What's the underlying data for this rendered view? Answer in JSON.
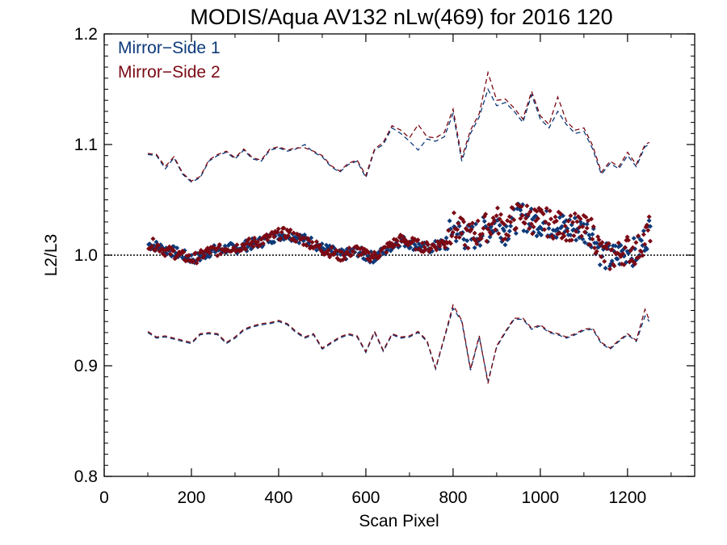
{
  "chart_data": {
    "type": "scatter",
    "title": "MODIS/Aqua AV132 nLw(469) for 2016 120",
    "xlabel": "Scan Pixel",
    "ylabel": "L2/L3",
    "xlim": [
      0,
      1354
    ],
    "ylim": [
      0.8,
      1.2
    ],
    "x_ticks": [
      0,
      200,
      400,
      600,
      800,
      1000,
      1200
    ],
    "x_tick_labels": [
      "0",
      "200",
      "400",
      "600",
      "800",
      "1000",
      "1200"
    ],
    "y_ticks": [
      0.8,
      0.9,
      1.0,
      1.1,
      1.2
    ],
    "y_tick_labels": [
      "0.8",
      "0.9",
      "1.0",
      "1.1",
      "1.2"
    ],
    "reference_line": 1.0,
    "legend_placement": "top-left",
    "legend": [
      {
        "label": "Mirror−Side 1",
        "color": "#0d3a7a"
      },
      {
        "label": "Mirror−Side 2",
        "color": "#7a0a14"
      }
    ],
    "x": [
      100,
      120,
      140,
      160,
      180,
      200,
      220,
      240,
      260,
      280,
      300,
      320,
      340,
      360,
      380,
      400,
      420,
      440,
      460,
      480,
      500,
      520,
      540,
      560,
      580,
      600,
      620,
      640,
      660,
      680,
      700,
      720,
      740,
      760,
      780,
      800,
      820,
      840,
      860,
      880,
      900,
      920,
      940,
      960,
      980,
      1000,
      1020,
      1040,
      1060,
      1080,
      1100,
      1120,
      1140,
      1160,
      1180,
      1200,
      1220,
      1240,
      1250
    ],
    "series": [
      {
        "name": "Mirror−Side 1",
        "color": "#0d3a7a",
        "mean": [
          1.01,
          1.008,
          1.005,
          1.003,
          1.0,
          0.997,
          0.998,
          1.003,
          1.005,
          1.006,
          1.006,
          1.008,
          1.01,
          1.012,
          1.015,
          1.018,
          1.019,
          1.017,
          1.014,
          1.011,
          1.006,
          1.004,
          1.0,
          1.001,
          1.004,
          0.999,
          0.998,
          1.003,
          1.009,
          1.013,
          1.011,
          1.008,
          1.006,
          1.008,
          1.01,
          1.025,
          1.018,
          1.015,
          1.02,
          1.024,
          1.03,
          1.022,
          1.032,
          1.035,
          1.03,
          1.03,
          1.028,
          1.026,
          1.025,
          1.024,
          1.022,
          1.02,
          1.001,
          0.997,
          1.0,
          1.005,
          1.002,
          1.015,
          1.022
        ],
        "upper": [
          1.091,
          1.09,
          1.078,
          1.088,
          1.073,
          1.066,
          1.07,
          1.085,
          1.09,
          1.093,
          1.087,
          1.095,
          1.087,
          1.085,
          1.095,
          1.097,
          1.094,
          1.096,
          1.1,
          1.093,
          1.089,
          1.08,
          1.075,
          1.082,
          1.085,
          1.07,
          1.095,
          1.1,
          1.115,
          1.11,
          1.103,
          1.095,
          1.105,
          1.103,
          1.107,
          1.128,
          1.085,
          1.11,
          1.125,
          1.15,
          1.135,
          1.138,
          1.13,
          1.12,
          1.145,
          1.123,
          1.115,
          1.13,
          1.118,
          1.11,
          1.112,
          1.096,
          1.073,
          1.083,
          1.078,
          1.09,
          1.08,
          1.098,
          1.1
        ],
        "lower": [
          0.93,
          0.925,
          0.926,
          0.924,
          0.922,
          0.92,
          0.928,
          0.929,
          0.928,
          0.92,
          0.925,
          0.932,
          0.935,
          0.937,
          0.938,
          0.94,
          0.937,
          0.93,
          0.925,
          0.928,
          0.915,
          0.92,
          0.925,
          0.928,
          0.926,
          0.912,
          0.93,
          0.913,
          0.928,
          0.925,
          0.926,
          0.93,
          0.922,
          0.897,
          0.925,
          0.952,
          0.94,
          0.896,
          0.926,
          0.886,
          0.917,
          0.93,
          0.942,
          0.942,
          0.933,
          0.936,
          0.93,
          0.928,
          0.925,
          0.928,
          0.932,
          0.933,
          0.92,
          0.915,
          0.922,
          0.928,
          0.922,
          0.945,
          0.94
        ]
      },
      {
        "name": "Mirror−Side 2",
        "color": "#7a0a14",
        "mean": [
          1.011,
          1.009,
          1.004,
          1.002,
          0.999,
          0.996,
          0.999,
          1.004,
          1.004,
          1.007,
          1.007,
          1.009,
          1.011,
          1.013,
          1.016,
          1.019,
          1.02,
          1.016,
          1.013,
          1.01,
          1.005,
          1.003,
          0.999,
          1.002,
          1.005,
          1.0,
          0.999,
          1.004,
          1.01,
          1.014,
          1.012,
          1.009,
          1.007,
          1.009,
          1.012,
          1.027,
          1.02,
          1.017,
          1.022,
          1.026,
          1.032,
          1.024,
          1.034,
          1.037,
          1.032,
          1.031,
          1.029,
          1.027,
          1.026,
          1.025,
          1.023,
          1.021,
          1.002,
          0.998,
          1.001,
          1.006,
          1.003,
          1.016,
          1.023
        ],
        "upper": [
          1.092,
          1.091,
          1.08,
          1.089,
          1.074,
          1.067,
          1.071,
          1.086,
          1.091,
          1.094,
          1.088,
          1.096,
          1.088,
          1.086,
          1.096,
          1.098,
          1.095,
          1.097,
          1.097,
          1.094,
          1.09,
          1.081,
          1.076,
          1.083,
          1.086,
          1.072,
          1.096,
          1.102,
          1.117,
          1.113,
          1.106,
          1.118,
          1.107,
          1.106,
          1.111,
          1.132,
          1.088,
          1.113,
          1.128,
          1.165,
          1.14,
          1.141,
          1.133,
          1.123,
          1.148,
          1.126,
          1.118,
          1.143,
          1.121,
          1.113,
          1.115,
          1.099,
          1.075,
          1.085,
          1.08,
          1.093,
          1.082,
          1.1,
          1.102
        ],
        "lower": [
          0.931,
          0.926,
          0.927,
          0.925,
          0.923,
          0.921,
          0.929,
          0.93,
          0.929,
          0.921,
          0.926,
          0.933,
          0.936,
          0.938,
          0.939,
          0.941,
          0.938,
          0.931,
          0.926,
          0.929,
          0.916,
          0.921,
          0.926,
          0.929,
          0.927,
          0.913,
          0.931,
          0.914,
          0.929,
          0.926,
          0.927,
          0.931,
          0.923,
          0.898,
          0.926,
          0.955,
          0.941,
          0.897,
          0.927,
          0.884,
          0.918,
          0.931,
          0.943,
          0.943,
          0.934,
          0.937,
          0.931,
          0.929,
          0.926,
          0.929,
          0.933,
          0.934,
          0.921,
          0.916,
          0.923,
          0.929,
          0.923,
          0.951,
          0.941
        ]
      }
    ]
  }
}
